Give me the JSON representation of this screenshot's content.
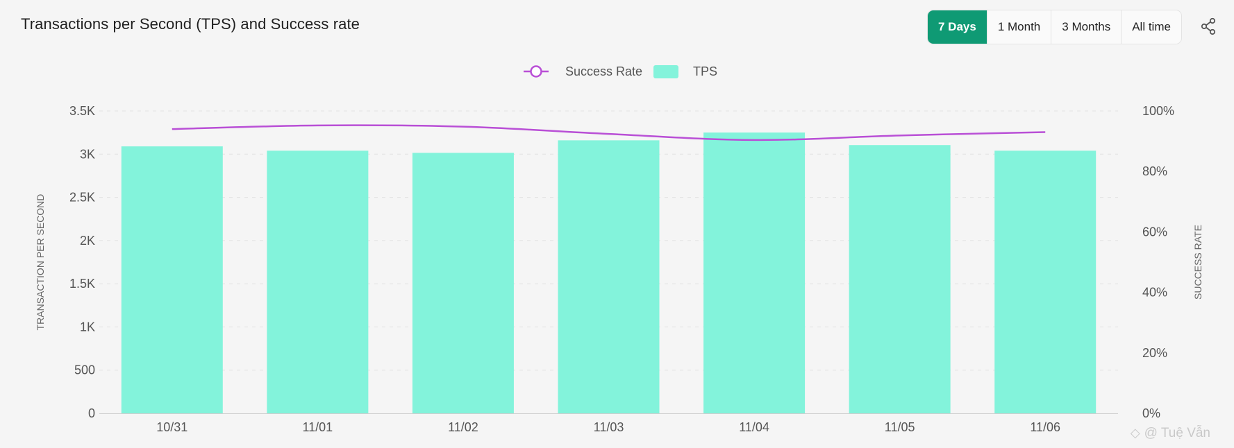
{
  "header": {
    "title": "Transactions per Second (TPS) and Success rate",
    "ranges": [
      "7 Days",
      "1 Month",
      "3 Months",
      "All time"
    ],
    "active_range": "7 Days",
    "share_icon": "share-icon"
  },
  "watermark": {
    "text": "@ Tuệ Vẫn",
    "icon": "diamond-icon"
  },
  "colors": {
    "accent": "#0f9a74",
    "bar": "#83f3db",
    "line": "#b94fd6"
  },
  "chart_data": {
    "type": "bar",
    "categories": [
      "10/31",
      "11/01",
      "11/02",
      "11/03",
      "11/04",
      "11/05",
      "11/06"
    ],
    "series": [
      {
        "name": "TPS",
        "type": "bar",
        "axis": "left",
        "values": [
          3090,
          3040,
          3015,
          3160,
          3250,
          3105,
          3040
        ]
      },
      {
        "name": "Success Rate",
        "type": "line",
        "axis": "right",
        "values": [
          94,
          95.2,
          94.8,
          92.4,
          90.4,
          91.9,
          93
        ]
      }
    ],
    "y_left": {
      "label": "TRANSACTION PER SECOND",
      "ticks": [
        "0",
        "500",
        "1K",
        "1.5K",
        "2K",
        "2.5K",
        "3K",
        "3.5K"
      ],
      "range": [
        0,
        3500
      ]
    },
    "y_right": {
      "label": "SUCCESS RATE",
      "ticks": [
        "0%",
        "20%",
        "40%",
        "60%",
        "80%",
        "100%"
      ],
      "range": [
        0,
        100
      ]
    },
    "legend": [
      "Success Rate",
      "TPS"
    ],
    "legend_position": "top-center",
    "grid": true
  }
}
